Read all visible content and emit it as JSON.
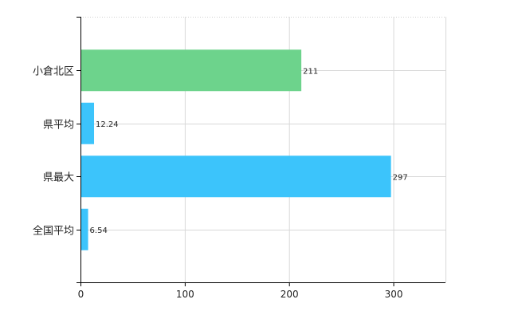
{
  "chart_data": {
    "type": "bar",
    "orientation": "horizontal",
    "categories": [
      "小倉北区",
      "県平均",
      "県最大",
      "全国平均"
    ],
    "values": [
      211,
      12.24,
      297,
      6.54
    ],
    "data_labels": [
      "211",
      "12.24",
      "297",
      "6.54"
    ],
    "bar_colors": [
      "#6dd38c",
      "#3cc4fb",
      "#3cc4fb",
      "#3cc4fb"
    ],
    "xlim": [
      0,
      350
    ],
    "xticks": [
      0,
      100,
      200,
      300
    ],
    "xtick_labels": [
      "0",
      "100",
      "200",
      "300"
    ],
    "grid": true,
    "legend": "none"
  }
}
